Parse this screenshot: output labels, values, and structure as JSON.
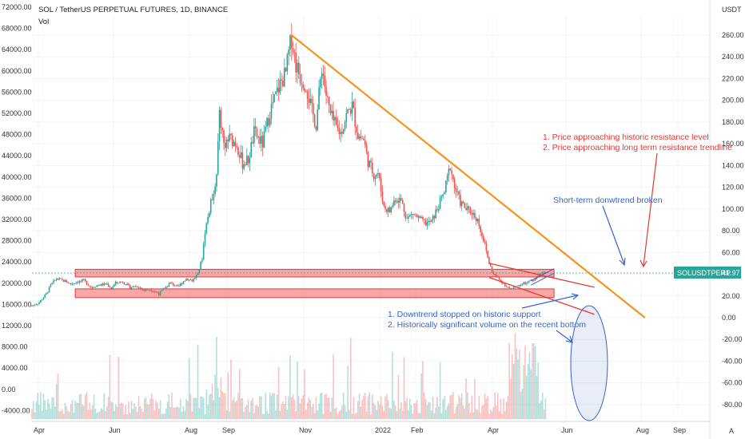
{
  "header": {
    "title": "SOL / TetherUS PERPETUAL FUTURES, 1D, BINANCE",
    "vol_label": "Vol",
    "currency": "USDT"
  },
  "price_badge": {
    "symbol": "SOLUSDTPERP",
    "value": "41.97"
  },
  "footer": {
    "auto_label": "A"
  },
  "colors": {
    "up": "#26a69a",
    "down": "#ef5350",
    "trend_orange": "#f7931a",
    "zone_fill": "#f28b8b",
    "zone_stroke": "#e53935",
    "annotation_red": "#e53935",
    "annotation_blue": "#3366cc",
    "badge": "#26a69a"
  },
  "chart_data": {
    "type": "candlestick",
    "x_ticks": [
      "Apr",
      "Jun",
      "Aug",
      "Sep",
      "Nov",
      "2022",
      "Feb",
      "Apr",
      "Jun",
      "Aug",
      "Sep"
    ],
    "right_ticks": [
      "260.00",
      "240.00",
      "220.00",
      "200.00",
      "180.00",
      "160.00",
      "140.00",
      "120.00",
      "100.00",
      "80.00",
      "60.00",
      "40.00",
      "20.00",
      "0.00",
      "-20.00",
      "-40.00",
      "-60.00",
      "-80.00"
    ],
    "left_ticks": [
      "72000.00",
      "68000.00",
      "64000.00",
      "60000.00",
      "56000.00",
      "52000.00",
      "48000.00",
      "44000.00",
      "40000.00",
      "36000.00",
      "32000.00",
      "28000.00",
      "24000.00",
      "20000.00",
      "16000.00",
      "12000.00",
      "8000.00",
      "4000.00",
      "0.00",
      "-4000.00"
    ],
    "right_range": [
      -90,
      270
    ],
    "current_price": 41.97,
    "price_path": [
      [
        0,
        11
      ],
      [
        5,
        14
      ],
      [
        10,
        22
      ],
      [
        13,
        30
      ],
      [
        17,
        36
      ],
      [
        22,
        34
      ],
      [
        27,
        31
      ],
      [
        31,
        33
      ],
      [
        36,
        34
      ],
      [
        41,
        28
      ],
      [
        46,
        30
      ],
      [
        52,
        31
      ],
      [
        55,
        27
      ],
      [
        58,
        32
      ],
      [
        63,
        33
      ],
      [
        68,
        28
      ],
      [
        73,
        29
      ],
      [
        78,
        25
      ],
      [
        82,
        26
      ],
      [
        88,
        22
      ],
      [
        92,
        27
      ],
      [
        96,
        32
      ],
      [
        101,
        28
      ],
      [
        107,
        36
      ],
      [
        111,
        34
      ],
      [
        115,
        40
      ],
      [
        118,
        55
      ],
      [
        120,
        80
      ],
      [
        124,
        105
      ],
      [
        128,
        130
      ],
      [
        130,
        190
      ],
      [
        133,
        160
      ],
      [
        137,
        165
      ],
      [
        142,
        160
      ],
      [
        146,
        142
      ],
      [
        150,
        145
      ],
      [
        154,
        170
      ],
      [
        160,
        160
      ],
      [
        165,
        190
      ],
      [
        168,
        200
      ],
      [
        172,
        215
      ],
      [
        176,
        225
      ],
      [
        178,
        243
      ],
      [
        180,
        258
      ],
      [
        183,
        233
      ],
      [
        186,
        222
      ],
      [
        190,
        215
      ],
      [
        194,
        190
      ],
      [
        197,
        178
      ],
      [
        201,
        232
      ],
      [
        204,
        205
      ],
      [
        207,
        186
      ],
      [
        211,
        175
      ],
      [
        214,
        170
      ],
      [
        218,
        186
      ],
      [
        222,
        195
      ],
      [
        226,
        168
      ],
      [
        230,
        164
      ],
      [
        233,
        144
      ],
      [
        237,
        132
      ],
      [
        240,
        133
      ],
      [
        244,
        102
      ],
      [
        248,
        98
      ],
      [
        252,
        110
      ],
      [
        256,
        108
      ],
      [
        260,
        91
      ],
      [
        264,
        96
      ],
      [
        269,
        90
      ],
      [
        273,
        87
      ],
      [
        277,
        88
      ],
      [
        281,
        100
      ],
      [
        286,
        116
      ],
      [
        290,
        140
      ],
      [
        293,
        120
      ],
      [
        297,
        106
      ],
      [
        301,
        100
      ],
      [
        305,
        97
      ],
      [
        309,
        90
      ],
      [
        313,
        72
      ],
      [
        317,
        50
      ],
      [
        320,
        40
      ],
      [
        324,
        35
      ],
      [
        328,
        30
      ],
      [
        332,
        26
      ],
      [
        336,
        29
      ],
      [
        340,
        31
      ],
      [
        344,
        33
      ],
      [
        348,
        35
      ],
      [
        352,
        39
      ],
      [
        356,
        42
      ]
    ],
    "volume_baseline": [
      4,
      3,
      3,
      4,
      3,
      2,
      6,
      7,
      5,
      3,
      3,
      2,
      6,
      12,
      3,
      2,
      12,
      2,
      6,
      10
    ],
    "trendlines": [
      {
        "name": "long-term-resistance",
        "p1": [
          180,
          260
        ],
        "p2": [
          425,
          0
        ],
        "color": "orange"
      },
      {
        "name": "short-term-upper",
        "p1": [
          317,
          50
        ],
        "p2": [
          390,
          28
        ],
        "color": "red"
      },
      {
        "name": "short-term-lower",
        "p1": [
          317,
          37
        ],
        "p2": [
          390,
          3
        ],
        "color": "red"
      }
    ],
    "support_zone": {
      "low": 18.5,
      "high": 26.5
    },
    "resistance_zone": {
      "low": 37.5,
      "high": 44.5
    },
    "annotations": {
      "resistance": [
        "1. Price approaching historic resistance level",
        "2. Price approaching long term resistance trendline"
      ],
      "breakout": "Short-term donwtrend broken",
      "support": [
        "1. Downtrend stopped on historic support",
        "2. Historically significant volume on the recent bottom"
      ]
    }
  }
}
